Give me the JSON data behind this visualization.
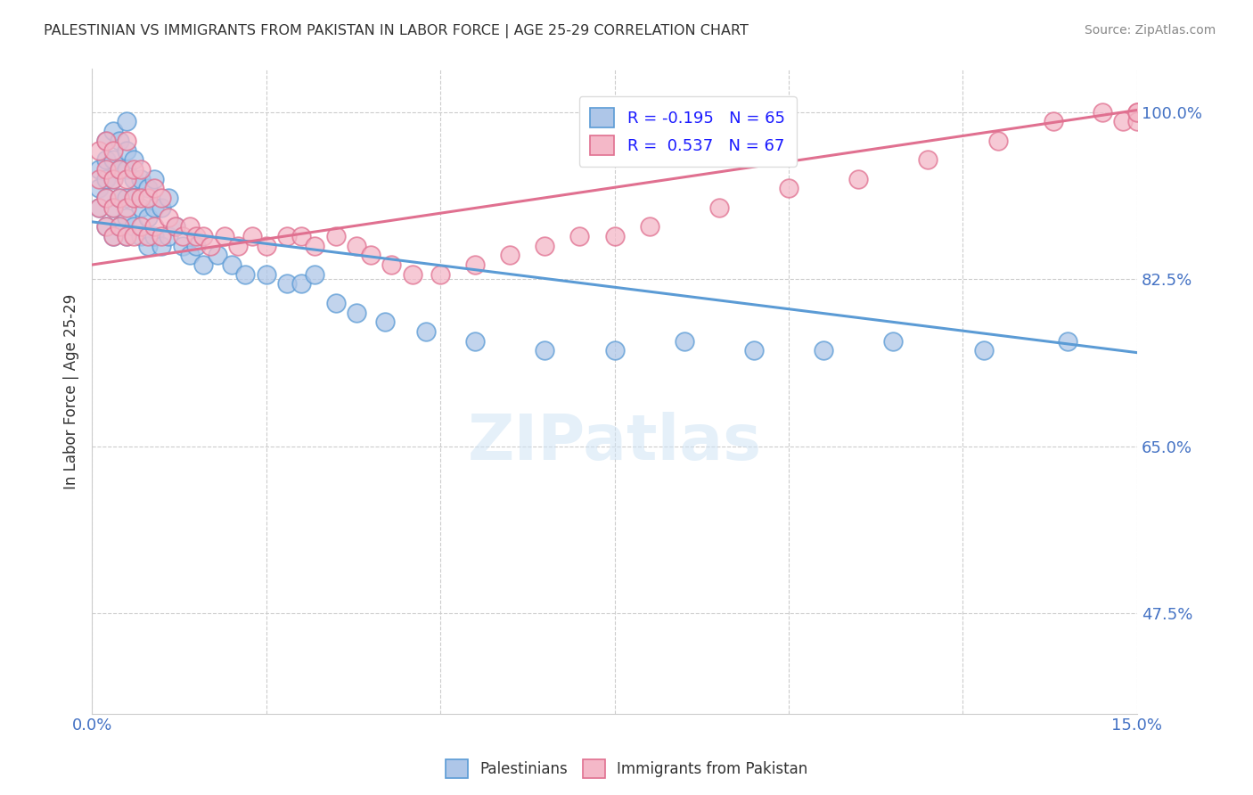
{
  "title": "PALESTINIAN VS IMMIGRANTS FROM PAKISTAN IN LABOR FORCE | AGE 25-29 CORRELATION CHART",
  "source": "Source: ZipAtlas.com",
  "ylabel": "In Labor Force | Age 25-29",
  "yticks": [
    0.475,
    0.65,
    0.825,
    1.0
  ],
  "ytick_labels": [
    "47.5%",
    "65.0%",
    "82.5%",
    "100.0%"
  ],
  "xmin": 0.0,
  "xmax": 0.15,
  "ymin": 0.37,
  "ymax": 1.045,
  "blue_color": "#aec6e8",
  "blue_edge": "#5b9bd5",
  "pink_color": "#f4b8c8",
  "pink_edge": "#e07090",
  "blue_line_color": "#5b9bd5",
  "pink_line_color": "#e07090",
  "blue_line_x": [
    0.0,
    0.15
  ],
  "blue_line_y": [
    0.885,
    0.748
  ],
  "pink_line_x": [
    0.0,
    0.15
  ],
  "pink_line_y": [
    0.84,
    1.002
  ],
  "palestinians_x": [
    0.001,
    0.001,
    0.001,
    0.002,
    0.002,
    0.002,
    0.002,
    0.002,
    0.003,
    0.003,
    0.003,
    0.003,
    0.003,
    0.004,
    0.004,
    0.004,
    0.004,
    0.005,
    0.005,
    0.005,
    0.005,
    0.005,
    0.005,
    0.006,
    0.006,
    0.006,
    0.006,
    0.007,
    0.007,
    0.007,
    0.008,
    0.008,
    0.008,
    0.009,
    0.009,
    0.009,
    0.01,
    0.01,
    0.011,
    0.011,
    0.012,
    0.013,
    0.014,
    0.015,
    0.016,
    0.018,
    0.02,
    0.022,
    0.025,
    0.028,
    0.03,
    0.032,
    0.035,
    0.038,
    0.042,
    0.048,
    0.055,
    0.065,
    0.075,
    0.085,
    0.095,
    0.105,
    0.115,
    0.128,
    0.14
  ],
  "palestinians_y": [
    0.9,
    0.92,
    0.94,
    0.88,
    0.91,
    0.93,
    0.95,
    0.97,
    0.87,
    0.9,
    0.93,
    0.95,
    0.98,
    0.88,
    0.91,
    0.94,
    0.97,
    0.87,
    0.89,
    0.91,
    0.94,
    0.96,
    0.99,
    0.88,
    0.91,
    0.93,
    0.95,
    0.87,
    0.9,
    0.93,
    0.86,
    0.89,
    0.92,
    0.87,
    0.9,
    0.93,
    0.86,
    0.9,
    0.87,
    0.91,
    0.88,
    0.86,
    0.85,
    0.86,
    0.84,
    0.85,
    0.84,
    0.83,
    0.83,
    0.82,
    0.82,
    0.83,
    0.8,
    0.79,
    0.78,
    0.77,
    0.76,
    0.75,
    0.75,
    0.76,
    0.75,
    0.75,
    0.76,
    0.75,
    0.76
  ],
  "pakistan_x": [
    0.001,
    0.001,
    0.001,
    0.002,
    0.002,
    0.002,
    0.002,
    0.003,
    0.003,
    0.003,
    0.003,
    0.004,
    0.004,
    0.004,
    0.005,
    0.005,
    0.005,
    0.005,
    0.006,
    0.006,
    0.006,
    0.007,
    0.007,
    0.007,
    0.008,
    0.008,
    0.009,
    0.009,
    0.01,
    0.01,
    0.011,
    0.012,
    0.013,
    0.014,
    0.015,
    0.016,
    0.017,
    0.019,
    0.021,
    0.023,
    0.025,
    0.028,
    0.03,
    0.032,
    0.035,
    0.038,
    0.04,
    0.043,
    0.046,
    0.05,
    0.055,
    0.06,
    0.065,
    0.07,
    0.075,
    0.08,
    0.09,
    0.1,
    0.11,
    0.12,
    0.13,
    0.138,
    0.145,
    0.148,
    0.15,
    0.15,
    0.15
  ],
  "pakistan_y": [
    0.9,
    0.93,
    0.96,
    0.88,
    0.91,
    0.94,
    0.97,
    0.87,
    0.9,
    0.93,
    0.96,
    0.88,
    0.91,
    0.94,
    0.87,
    0.9,
    0.93,
    0.97,
    0.87,
    0.91,
    0.94,
    0.88,
    0.91,
    0.94,
    0.87,
    0.91,
    0.88,
    0.92,
    0.87,
    0.91,
    0.89,
    0.88,
    0.87,
    0.88,
    0.87,
    0.87,
    0.86,
    0.87,
    0.86,
    0.87,
    0.86,
    0.87,
    0.87,
    0.86,
    0.87,
    0.86,
    0.85,
    0.84,
    0.83,
    0.83,
    0.84,
    0.85,
    0.86,
    0.87,
    0.87,
    0.88,
    0.9,
    0.92,
    0.93,
    0.95,
    0.97,
    0.99,
    1.0,
    0.99,
    1.0,
    0.99,
    1.0
  ]
}
